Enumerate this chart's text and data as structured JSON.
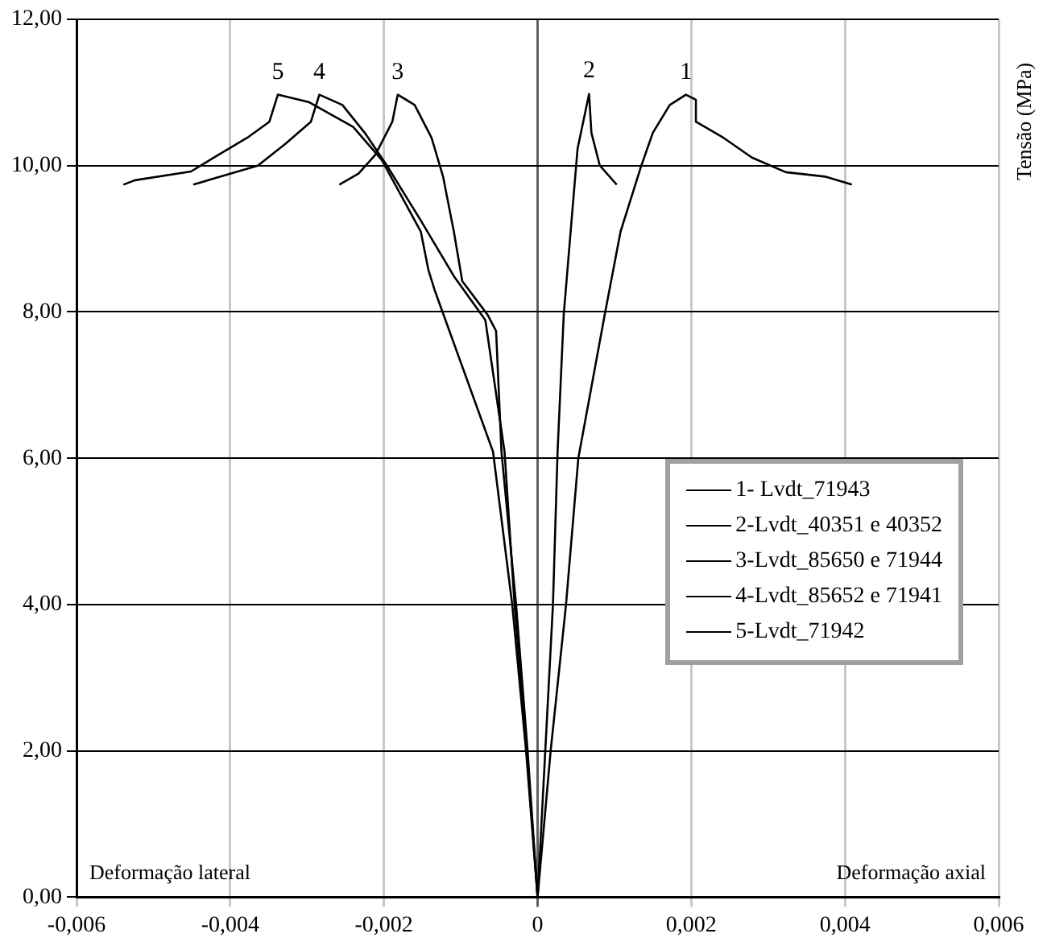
{
  "chart_data": {
    "type": "line",
    "ylabel": "Tensão (MPa)",
    "xlim": [
      -0.006,
      0.006
    ],
    "xticks": [
      {
        "value": -0.006,
        "label": "-0,006"
      },
      {
        "value": -0.004,
        "label": "-0,004"
      },
      {
        "value": -0.002,
        "label": "-0,002"
      },
      {
        "value": 0,
        "label": "0"
      },
      {
        "value": 0.002,
        "label": "0,002"
      },
      {
        "value": 0.004,
        "label": "0,004"
      },
      {
        "value": 0.006,
        "label": "0,006"
      }
    ],
    "ylim": [
      0,
      12
    ],
    "yticks": [
      {
        "value": 0,
        "label": "0,00"
      },
      {
        "value": 2,
        "label": "2,00"
      },
      {
        "value": 4,
        "label": "4,00"
      },
      {
        "value": 6,
        "label": "6,00"
      },
      {
        "value": 8,
        "label": "8,00"
      },
      {
        "value": 10,
        "label": "10,00"
      },
      {
        "value": 12,
        "label": "12,00"
      }
    ],
    "grid": true,
    "legend": "bottom right",
    "marker": "none",
    "line_style": "solid",
    "series": [
      {
        "name": "1- Lvdt_71943",
        "color": "#000000",
        "x": [
          0,
          0.00017,
          0.00037,
          0.00053,
          0.00088,
          0.00108,
          0.00135,
          0.0015,
          0.00172,
          0.00193,
          0.00206,
          0.00206,
          0.00242,
          0.00279,
          0.00323,
          0.00374,
          0.00409
        ],
        "values": [
          0,
          2,
          4,
          6,
          8,
          9.1,
          10,
          10.45,
          10.83,
          10.97,
          10.9,
          10.6,
          10.38,
          10.11,
          9.91,
          9.85,
          9.74
        ]
      },
      {
        "name": "2-Lvdt_40351 e 40352",
        "color": "#000000",
        "x": [
          0,
          0.0001,
          0.0002,
          0.00026,
          0.00034,
          0.00043,
          0.00052,
          0.00067,
          0.0007,
          0.00081,
          0.00103
        ],
        "values": [
          0,
          2,
          4,
          6.09,
          7.96,
          9.1,
          10.23,
          10.98,
          10.45,
          10,
          9.74
        ]
      },
      {
        "name": "3-Lvdt_85650 e 71944",
        "color": "#000000",
        "x": [
          0,
          -0.00013,
          -0.00028,
          -0.00047,
          -0.00054,
          -0.00065,
          -0.00098,
          -0.00109,
          -0.00123,
          -0.00138,
          -0.0016,
          -0.00182,
          -0.00189,
          -0.00211,
          -0.00233,
          -0.00258
        ],
        "values": [
          0,
          2,
          4,
          6.09,
          7.74,
          7.96,
          8.42,
          9.1,
          9.85,
          10.38,
          10.83,
          10.97,
          10.6,
          10.15,
          9.89,
          9.74
        ]
      },
      {
        "name": "4-Lvdt_85652 e 71941",
        "color": "#000000",
        "x": [
          0,
          -0.00014,
          -0.0003,
          -0.00043,
          -0.00068,
          -0.00109,
          -0.00152,
          -0.00196,
          -0.00225,
          -0.00254,
          -0.00284,
          -0.00295,
          -0.00328,
          -0.00364,
          -0.004,
          -0.00448
        ],
        "values": [
          0,
          2,
          4,
          6.09,
          7.89,
          8.49,
          9.25,
          10,
          10.45,
          10.83,
          10.97,
          10.6,
          10.3,
          10,
          9.89,
          9.74
        ]
      },
      {
        "name": "5-Lvdt_71942",
        "color": "#000000",
        "x": [
          0,
          -0.00015,
          -0.00033,
          -0.00058,
          -0.00134,
          -0.00142,
          -0.00152,
          -0.00203,
          -0.0024,
          -0.00298,
          -0.00338,
          -0.00349,
          -0.00378,
          -0.00415,
          -0.00451,
          -0.00524,
          -0.00539
        ],
        "values": [
          0,
          2,
          4,
          6.09,
          8.3,
          8.57,
          9.1,
          10.08,
          10.53,
          10.87,
          10.97,
          10.6,
          10.38,
          10.15,
          9.92,
          9.8,
          9.74
        ]
      }
    ],
    "annotations": [
      "Deformação lateral",
      "Deformação axial",
      "1",
      "2",
      "3",
      "4",
      "5"
    ]
  }
}
